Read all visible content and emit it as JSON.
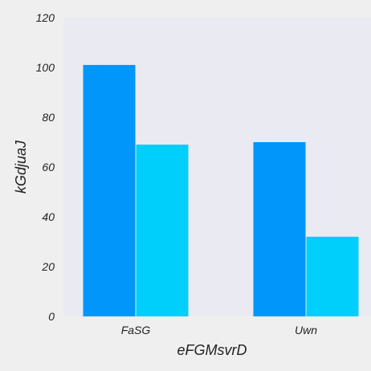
{
  "chart_data": {
    "type": "bar",
    "categories": [
      "FaSG",
      "Uwn"
    ],
    "series": [
      {
        "values": [
          101,
          70
        ],
        "color": "#0096fa"
      },
      {
        "values": [
          69,
          32
        ],
        "color": "#00cffc"
      }
    ],
    "bar_layout": "by-position",
    "xlabel": "eFGMsvrD",
    "ylabel": "kGdjuaJ",
    "ylim": [
      0,
      120
    ],
    "yticks": [
      0,
      20,
      40,
      60,
      80,
      100,
      120
    ],
    "grid": false,
    "plot_background": "#eaeaf2",
    "page_background": "#efefef"
  }
}
